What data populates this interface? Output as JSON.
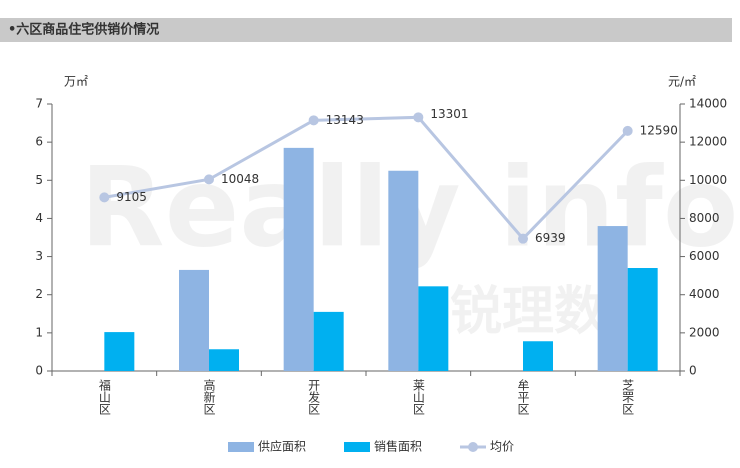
{
  "chart_data": {
    "type": "bar_line",
    "title": "•六区商品住宅供销价情况",
    "watermark": [
      "Really info",
      "锐理数据"
    ],
    "y_unit": "万㎡",
    "y2_unit": "元/㎡",
    "categories": [
      "福山区",
      "高新区",
      "开发区",
      "莱山区",
      "牟平区",
      "芝罘区"
    ],
    "series": [
      {
        "name": "供应面积",
        "type": "bar",
        "color": "#8eb4e3",
        "values": [
          null,
          2.65,
          5.85,
          5.25,
          null,
          3.8
        ]
      },
      {
        "name": "销售面积",
        "type": "bar",
        "color": "#00b0f0",
        "values": [
          1.02,
          0.57,
          1.55,
          2.22,
          0.78,
          2.7
        ]
      },
      {
        "name": "均价",
        "type": "line",
        "axis": "y2",
        "color": "#b8c6e2",
        "values": [
          9105,
          10048,
          13143,
          13301,
          6939,
          12590
        ]
      }
    ],
    "ylim": [
      0,
      7
    ],
    "yticks": [
      0,
      1,
      2,
      3,
      4,
      5,
      6,
      7
    ],
    "y2lim": [
      0,
      14000
    ],
    "y2ticks": [
      0,
      2000,
      4000,
      6000,
      8000,
      10000,
      12000,
      14000
    ],
    "legend": "bottom"
  }
}
